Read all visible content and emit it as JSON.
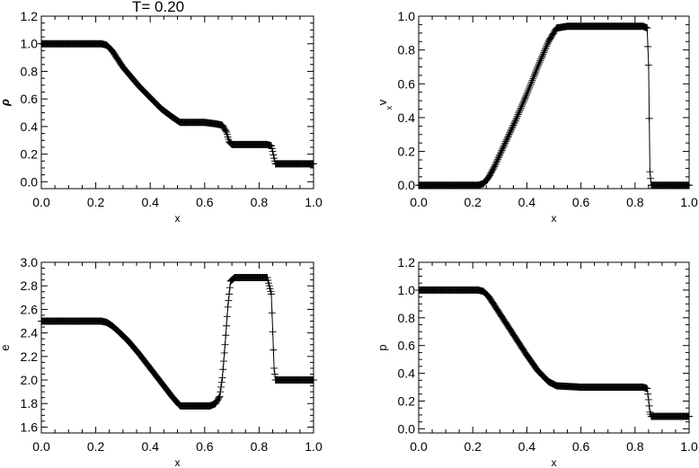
{
  "figure_title": "T=  0.20",
  "chart_data": [
    {
      "type": "line",
      "marker": "plus",
      "xlabel": "x",
      "ylabel": "ρ",
      "ylabel_sub": "",
      "xlim": [
        0.0,
        1.0
      ],
      "ylim": [
        -0.05,
        1.2
      ],
      "xticks": [
        "0.0",
        "0.2",
        "0.4",
        "0.6",
        "0.8",
        "1.0"
      ],
      "yticks": [
        "0.0",
        "0.2",
        "0.4",
        "0.6",
        "0.8",
        "1.0",
        "1.2"
      ],
      "x": [
        0.0,
        0.22,
        0.24,
        0.26,
        0.28,
        0.3,
        0.33,
        0.36,
        0.4,
        0.44,
        0.48,
        0.51,
        0.6,
        0.64,
        0.665,
        0.68,
        0.69,
        0.7,
        0.83,
        0.845,
        0.85,
        0.855,
        0.86,
        1.0
      ],
      "y": [
        1.0,
        1.0,
        0.99,
        0.95,
        0.89,
        0.83,
        0.76,
        0.69,
        0.61,
        0.53,
        0.47,
        0.43,
        0.43,
        0.42,
        0.41,
        0.36,
        0.29,
        0.27,
        0.27,
        0.26,
        0.22,
        0.17,
        0.13,
        0.13
      ]
    },
    {
      "type": "line",
      "marker": "plus",
      "xlabel": "x",
      "ylabel": "v",
      "ylabel_sub": "x",
      "xlim": [
        0.0,
        1.0
      ],
      "ylim": [
        -0.02,
        1.0
      ],
      "xticks": [
        "0.0",
        "0.2",
        "0.4",
        "0.6",
        "0.8",
        "1.0"
      ],
      "yticks": [
        "0.0",
        "0.2",
        "0.4",
        "0.6",
        "0.8",
        "1.0"
      ],
      "x": [
        0.0,
        0.22,
        0.24,
        0.26,
        0.28,
        0.32,
        0.36,
        0.4,
        0.44,
        0.48,
        0.51,
        0.55,
        0.83,
        0.845,
        0.85,
        0.855,
        0.86,
        1.0
      ],
      "y": [
        0.0,
        0.0,
        0.01,
        0.05,
        0.11,
        0.25,
        0.39,
        0.54,
        0.7,
        0.85,
        0.93,
        0.94,
        0.94,
        0.93,
        0.71,
        0.08,
        0.0,
        0.0
      ]
    },
    {
      "type": "line",
      "marker": "plus",
      "xlabel": "x",
      "ylabel": "e",
      "ylabel_sub": "",
      "xlim": [
        0.0,
        1.0
      ],
      "ylim": [
        1.55,
        3.0
      ],
      "xticks": [
        "0.0",
        "0.2",
        "0.4",
        "0.6",
        "0.8",
        "1.0"
      ],
      "yticks": [
        "1.6",
        "1.8",
        "2.0",
        "2.2",
        "2.4",
        "2.6",
        "2.8",
        "3.0"
      ],
      "x": [
        0.0,
        0.22,
        0.24,
        0.26,
        0.28,
        0.32,
        0.36,
        0.4,
        0.44,
        0.48,
        0.51,
        0.62,
        0.64,
        0.655,
        0.665,
        0.675,
        0.685,
        0.695,
        0.71,
        0.83,
        0.845,
        0.85,
        0.855,
        0.86,
        1.0
      ],
      "y": [
        2.5,
        2.5,
        2.49,
        2.46,
        2.42,
        2.33,
        2.22,
        2.1,
        1.98,
        1.86,
        1.78,
        1.78,
        1.8,
        1.86,
        2.02,
        2.3,
        2.62,
        2.84,
        2.87,
        2.87,
        2.73,
        2.41,
        2.1,
        2.0,
        2.0
      ]
    },
    {
      "type": "line",
      "marker": "plus",
      "xlabel": "x",
      "ylabel": "p",
      "ylabel_sub": "",
      "xlim": [
        0.0,
        1.0
      ],
      "ylim": [
        -0.03,
        1.2
      ],
      "xticks": [
        "0.0",
        "0.2",
        "0.4",
        "0.6",
        "0.8",
        "1.0"
      ],
      "yticks": [
        "0.0",
        "0.2",
        "0.4",
        "0.6",
        "0.8",
        "1.0",
        "1.2"
      ],
      "x": [
        0.0,
        0.22,
        0.24,
        0.26,
        0.28,
        0.32,
        0.36,
        0.4,
        0.44,
        0.48,
        0.51,
        0.6,
        0.83,
        0.845,
        0.85,
        0.855,
        0.86,
        1.0
      ],
      "y": [
        1.0,
        1.0,
        0.99,
        0.95,
        0.89,
        0.77,
        0.65,
        0.53,
        0.42,
        0.34,
        0.31,
        0.3,
        0.3,
        0.29,
        0.21,
        0.12,
        0.09,
        0.09
      ]
    }
  ]
}
